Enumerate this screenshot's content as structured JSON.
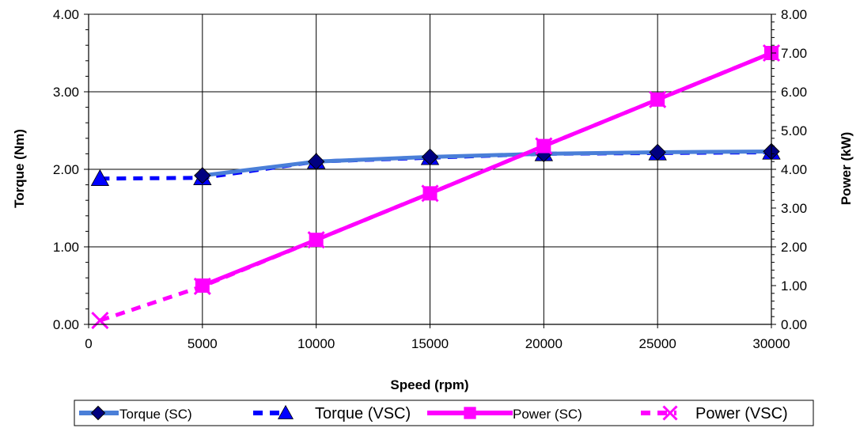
{
  "chart_data": {
    "type": "line",
    "xlabel": "Speed (rpm)",
    "ylabel": "Torque (Nm)",
    "y2label": "Power (kW)",
    "xlim": [
      0,
      30000
    ],
    "ylim": [
      0,
      4
    ],
    "y2lim": [
      0,
      8
    ],
    "grid": true,
    "legend_position": "bottom",
    "x_ticks": [
      "0",
      "5000",
      "10000",
      "15000",
      "20000",
      "25000",
      "30000"
    ],
    "y_ticks": [
      "0.00",
      "1.00",
      "2.00",
      "3.00",
      "4.00"
    ],
    "y2_ticks": [
      "0.00",
      "1.00",
      "2.00",
      "3.00",
      "4.00",
      "5.00",
      "6.00",
      "7.00",
      "8.00"
    ],
    "series": [
      {
        "name": "Torque (SC)",
        "axis": "left",
        "color": "#4a7fd8",
        "line": "solid",
        "marker": "diamond",
        "marker_color": "#000080",
        "x": [
          5000,
          10000,
          15000,
          20000,
          25000,
          30000
        ],
        "y": [
          1.92,
          2.1,
          2.16,
          2.2,
          2.22,
          2.23
        ]
      },
      {
        "name": "Torque (VSC)",
        "axis": "left",
        "color": "#0000ff",
        "line": "dashed",
        "marker": "triangle",
        "marker_color": "#0000ff",
        "x": [
          500,
          5000,
          10000,
          15000,
          20000,
          25000,
          30000
        ],
        "y": [
          1.88,
          1.89,
          2.1,
          2.15,
          2.2,
          2.21,
          2.22
        ]
      },
      {
        "name": "Power (SC)",
        "axis": "right",
        "color": "#ff00ff",
        "line": "solid",
        "marker": "square",
        "marker_color": "#ff00ff",
        "x": [
          5000,
          10000,
          15000,
          20000,
          25000,
          30000
        ],
        "y": [
          1.0,
          2.18,
          3.38,
          4.6,
          5.8,
          7.0
        ]
      },
      {
        "name": "Power (VSC)",
        "axis": "right",
        "color": "#ff00ff",
        "line": "dashed",
        "marker": "x",
        "marker_color": "#ff00ff",
        "x": [
          500,
          5000,
          10000,
          15000,
          20000,
          25000,
          30000
        ],
        "y": [
          0.1,
          0.98,
          2.18,
          3.38,
          4.6,
          5.8,
          7.0
        ]
      }
    ]
  }
}
